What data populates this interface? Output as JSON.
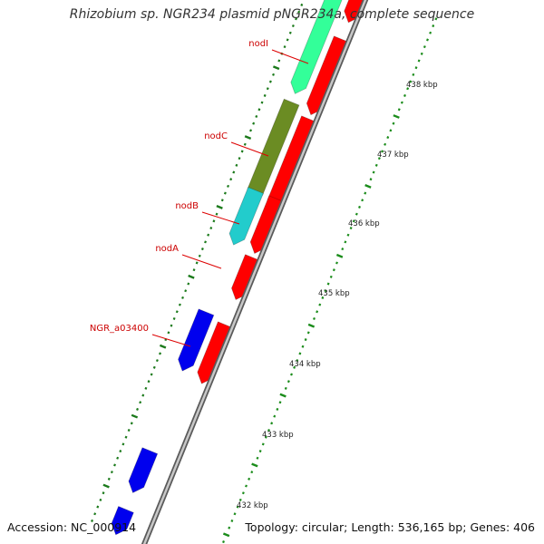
{
  "title": "Rhizobium sp. NGR234 plasmid pNGR234a, complete sequence",
  "accession": {
    "label": "Accession:",
    "value": "NC_000914"
  },
  "summary": {
    "topology_label": "Topology:",
    "topology": "circular",
    "length_label": "Length:",
    "length": "536,165 bp",
    "genes_label": "Genes:",
    "genes": "406"
  },
  "colors": {
    "backbone": "#888888",
    "tick_inner": "#1b7a1b",
    "tick_outer": "#1b8c1b",
    "label_text": "#cc0000",
    "leader_line": "#dd0000",
    "scale_text": "#222222"
  },
  "scale_marks": [
    {
      "label": "438 kbp"
    },
    {
      "label": "437 kbp"
    },
    {
      "label": "436 kbp"
    },
    {
      "label": "435 kbp"
    },
    {
      "label": "434 kbp"
    },
    {
      "label": "433 kbp"
    },
    {
      "label": "432 kbp"
    }
  ],
  "gene_labels": [
    {
      "name": "nodI"
    },
    {
      "name": "nodC"
    },
    {
      "name": "nodB"
    },
    {
      "name": "nodA"
    },
    {
      "name": "NGR_a03400"
    }
  ],
  "features": [
    {
      "track": "inner",
      "fill": "#33ff99",
      "name": "nodI"
    },
    {
      "track": "inner",
      "fill": "#6b8c23",
      "name": "nodC"
    },
    {
      "track": "inner",
      "fill": "#22cccc",
      "name": "nodB"
    },
    {
      "track": "outer",
      "fill": "#ff0000",
      "name": ""
    },
    {
      "track": "outer",
      "fill": "#ff0000",
      "name": ""
    },
    {
      "track": "outer",
      "fill": "#ff0000",
      "name": ""
    },
    {
      "track": "outer",
      "fill": "#ff0000",
      "name": ""
    },
    {
      "track": "outer",
      "fill": "#ff0000",
      "name": "nodA"
    },
    {
      "track": "inner",
      "fill": "#0000ee",
      "name": "NGR_a03400"
    },
    {
      "track": "outer",
      "fill": "#ff0000",
      "name": ""
    },
    {
      "track": "inner",
      "fill": "#0000ee",
      "name": ""
    },
    {
      "track": "inner",
      "fill": "#0000ee",
      "name": ""
    }
  ]
}
